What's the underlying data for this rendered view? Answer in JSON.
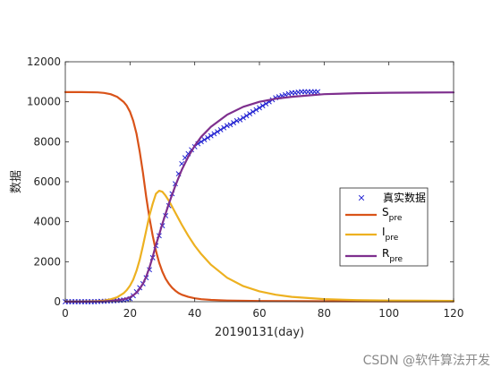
{
  "chart_data": {
    "type": "line",
    "xlabel": "20190131(day)",
    "ylabel": "数据",
    "xlim": [
      0,
      120
    ],
    "ylim": [
      0,
      12000
    ],
    "xticks": [
      "0",
      "20",
      "40",
      "60",
      "80",
      "100",
      "120"
    ],
    "yticks": [
      "0",
      "2000",
      "4000",
      "6000",
      "8000",
      "10000",
      "12000"
    ],
    "grid": false,
    "legend_position": "right",
    "series": [
      {
        "name": "真实数据",
        "kind": "markers",
        "marker": "x",
        "color": "#1f1fd1",
        "x": [
          0,
          1,
          2,
          3,
          4,
          5,
          6,
          7,
          8,
          9,
          10,
          11,
          12,
          13,
          14,
          15,
          16,
          17,
          18,
          19,
          20,
          21,
          22,
          23,
          24,
          25,
          26,
          27,
          28,
          29,
          30,
          31,
          32,
          33,
          34,
          35,
          36,
          37,
          38,
          39,
          40,
          41,
          42,
          43,
          44,
          45,
          46,
          47,
          48,
          49,
          50,
          51,
          52,
          53,
          54,
          55,
          56,
          57,
          58,
          59,
          60,
          61,
          62,
          63,
          64,
          65,
          66,
          67,
          68,
          69,
          70,
          71,
          72,
          73,
          74,
          75,
          76,
          77,
          78
        ],
        "y": [
          0,
          0,
          0,
          0,
          0,
          0,
          0,
          0,
          0,
          0,
          10,
          20,
          20,
          30,
          40,
          50,
          60,
          70,
          80,
          100,
          150,
          300,
          500,
          700,
          900,
          1200,
          1600,
          2200,
          2800,
          3300,
          3800,
          4300,
          4800,
          5400,
          5900,
          6400,
          6900,
          7200,
          7400,
          7600,
          7750,
          7900,
          8000,
          8100,
          8200,
          8300,
          8400,
          8500,
          8600,
          8700,
          8800,
          8850,
          8950,
          9050,
          9100,
          9200,
          9300,
          9400,
          9500,
          9600,
          9700,
          9800,
          9900,
          10000,
          10100,
          10200,
          10250,
          10300,
          10350,
          10400,
          10450,
          10450,
          10480,
          10500,
          10500,
          10500,
          10500,
          10500,
          10500
        ]
      },
      {
        "name": "S_pre",
        "label_main": "S",
        "label_sub": "pre",
        "color": "#d95319",
        "x": [
          0,
          5,
          10,
          12,
          14,
          16,
          18,
          19,
          20,
          21,
          22,
          23,
          24,
          25,
          26,
          27,
          28,
          29,
          30,
          31,
          32,
          33,
          34,
          35,
          36,
          38,
          40,
          42,
          45,
          50,
          55,
          60,
          70,
          80,
          100,
          120
        ],
        "y": [
          10480,
          10480,
          10470,
          10440,
          10380,
          10250,
          10000,
          9800,
          9500,
          9050,
          8400,
          7500,
          6450,
          5250,
          4200,
          3300,
          2550,
          1950,
          1500,
          1150,
          900,
          700,
          550,
          430,
          350,
          240,
          170,
          125,
          90,
          60,
          45,
          35,
          28,
          24,
          20,
          18
        ]
      },
      {
        "name": "I_pre",
        "label_main": "I",
        "label_sub": "pre",
        "color": "#edb120",
        "x": [
          0,
          5,
          10,
          12,
          14,
          16,
          18,
          19,
          20,
          21,
          22,
          23,
          24,
          25,
          26,
          27,
          28,
          29,
          30,
          31,
          32,
          33,
          34,
          35,
          36,
          38,
          40,
          42,
          45,
          50,
          55,
          60,
          65,
          70,
          80,
          90,
          100,
          110,
          120
        ],
        "y": [
          5,
          10,
          30,
          60,
          120,
          220,
          420,
          580,
          800,
          1100,
          1550,
          2100,
          2800,
          3550,
          4300,
          4900,
          5400,
          5550,
          5500,
          5300,
          5050,
          4750,
          4450,
          4150,
          3850,
          3300,
          2800,
          2380,
          1850,
          1200,
          780,
          520,
          350,
          240,
          130,
          80,
          60,
          50,
          40
        ]
      },
      {
        "name": "R_pre",
        "label_main": "R",
        "label_sub": "pre",
        "color": "#7e2f8e",
        "x": [
          0,
          5,
          10,
          12,
          14,
          16,
          18,
          19,
          20,
          21,
          22,
          23,
          24,
          25,
          26,
          27,
          28,
          29,
          30,
          31,
          32,
          33,
          34,
          35,
          36,
          38,
          40,
          42,
          45,
          50,
          55,
          60,
          65,
          70,
          80,
          90,
          100,
          110,
          120
        ],
        "y": [
          0,
          2,
          10,
          20,
          40,
          70,
          120,
          160,
          220,
          320,
          450,
          650,
          900,
          1250,
          1700,
          2250,
          2850,
          3350,
          3900,
          4400,
          4900,
          5350,
          5800,
          6200,
          6600,
          7250,
          7800,
          8250,
          8750,
          9350,
          9750,
          10000,
          10150,
          10250,
          10380,
          10430,
          10450,
          10460,
          10470
        ]
      }
    ]
  },
  "watermark": "CSDN @软件算法开发"
}
